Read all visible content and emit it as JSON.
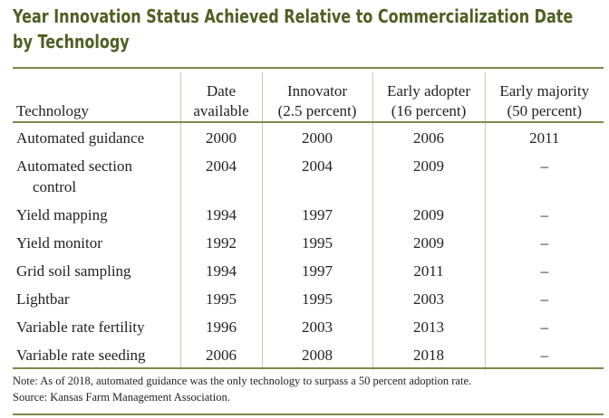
{
  "title": {
    "line1": "Year Innovation Status Achieved Relative to Commercialization Date",
    "line2": "by Technology"
  },
  "colors": {
    "accent": "#4f5f22",
    "rule": "#7c8a4b",
    "text": "#222222"
  },
  "table": {
    "headers": [
      {
        "lines": [
          "Technology"
        ]
      },
      {
        "lines": [
          "Date",
          "available"
        ]
      },
      {
        "lines": [
          "Innovator",
          "(2.5 percent)"
        ]
      },
      {
        "lines": [
          "Early adopter",
          "(16 percent)"
        ]
      },
      {
        "lines": [
          "Early majority",
          "(50 percent)"
        ]
      }
    ],
    "rows": [
      {
        "technology": [
          "Automated guidance"
        ],
        "date_available": "2000",
        "innovator": "2000",
        "early_adopter": "2006",
        "early_majority": "2011"
      },
      {
        "technology": [
          "Automated section",
          "control"
        ],
        "date_available": "2004",
        "innovator": "2004",
        "early_adopter": "2009",
        "early_majority": "–"
      },
      {
        "technology": [
          "Yield mapping"
        ],
        "date_available": "1994",
        "innovator": "1997",
        "early_adopter": "2009",
        "early_majority": "–"
      },
      {
        "technology": [
          "Yield monitor"
        ],
        "date_available": "1992",
        "innovator": "1995",
        "early_adopter": "2009",
        "early_majority": "–"
      },
      {
        "technology": [
          "Grid soil sampling"
        ],
        "date_available": "1994",
        "innovator": "1997",
        "early_adopter": "2011",
        "early_majority": "–"
      },
      {
        "technology": [
          "Lightbar"
        ],
        "date_available": "1995",
        "innovator": "1995",
        "early_adopter": "2003",
        "early_majority": "–"
      },
      {
        "technology": [
          "Variable rate fertility"
        ],
        "date_available": "1996",
        "innovator": "2003",
        "early_adopter": "2013",
        "early_majority": "–"
      },
      {
        "technology": [
          "Variable rate seeding"
        ],
        "date_available": "2006",
        "innovator": "2008",
        "early_adopter": "2018",
        "early_majority": "–"
      }
    ]
  },
  "notes": {
    "note": "Note: As of 2018, automated guidance was the only technology to surpass a 50 percent adoption rate.",
    "source": "Source: Kansas Farm Management Association."
  }
}
